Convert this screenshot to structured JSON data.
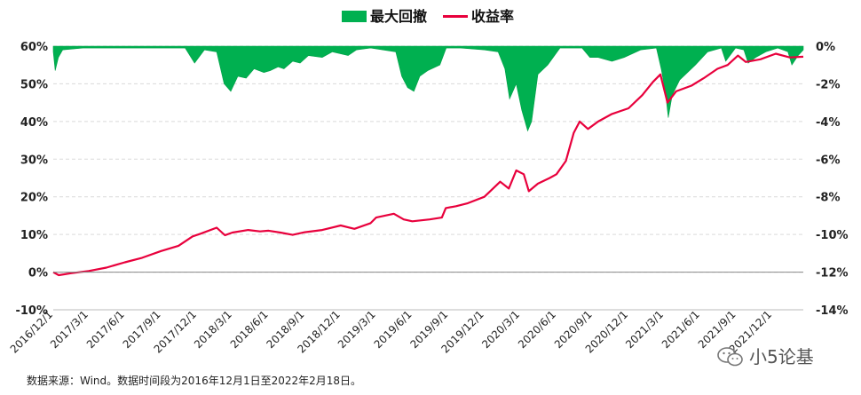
{
  "chart_data": {
    "type": "line+area",
    "legend": [
      {
        "name": "最大回撤",
        "color": "#00b050",
        "kind": "area"
      },
      {
        "name": "收益率",
        "color": "#e8003c",
        "kind": "line"
      }
    ],
    "legend_placement": "top-center",
    "y_left": {
      "ticks": [
        "60%",
        "50%",
        "40%",
        "30%",
        "20%",
        "10%",
        "0%",
        "-10%"
      ],
      "range": [
        -10,
        60
      ]
    },
    "y_right": {
      "ticks": [
        "0%",
        "-2%",
        "-4%",
        "-6%",
        "-8%",
        "-10%",
        "-12%",
        "-14%"
      ],
      "range": [
        -14,
        0
      ]
    },
    "x_ticks": [
      "2016/12/1",
      "2017/3/1",
      "2017/6/1",
      "2017/9/1",
      "2017/12/1",
      "2018/3/1",
      "2018/6/1",
      "2018/9/1",
      "2018/12/1",
      "2019/3/1",
      "2019/6/1",
      "2019/9/1",
      "2019/12/1",
      "2020/3/1",
      "2020/6/1",
      "2020/9/1",
      "2020/12/1",
      "2021/3/1",
      "2021/6/1",
      "2021/9/1",
      "2021/12/1"
    ],
    "x_range": [
      "2016-12-01",
      "2022-02-18"
    ],
    "grid": true,
    "return_series": {
      "name": "收益率",
      "points": [
        [
          "2016-12-01",
          0.0
        ],
        [
          "2016-12-15",
          -0.8
        ],
        [
          "2017-01-15",
          -0.3
        ],
        [
          "2017-03-01",
          0.3
        ],
        [
          "2017-04-15",
          1.2
        ],
        [
          "2017-06-01",
          2.6
        ],
        [
          "2017-07-15",
          3.8
        ],
        [
          "2017-09-01",
          5.6
        ],
        [
          "2017-10-15",
          7.0
        ],
        [
          "2017-11-20",
          9.5
        ],
        [
          "2017-12-10",
          10.2
        ],
        [
          "2018-01-20",
          11.8
        ],
        [
          "2018-02-10",
          9.8
        ],
        [
          "2018-03-01",
          10.5
        ],
        [
          "2018-04-10",
          11.2
        ],
        [
          "2018-05-10",
          10.8
        ],
        [
          "2018-06-01",
          11.0
        ],
        [
          "2018-07-01",
          10.5
        ],
        [
          "2018-08-01",
          9.9
        ],
        [
          "2018-09-01",
          10.6
        ],
        [
          "2018-10-15",
          11.2
        ],
        [
          "2018-12-01",
          12.4
        ],
        [
          "2019-01-05",
          11.5
        ],
        [
          "2019-02-15",
          13.0
        ],
        [
          "2019-03-01",
          14.5
        ],
        [
          "2019-04-15",
          15.5
        ],
        [
          "2019-05-10",
          14.0
        ],
        [
          "2019-06-01",
          13.5
        ],
        [
          "2019-07-15",
          14.0
        ],
        [
          "2019-08-15",
          14.5
        ],
        [
          "2019-08-25",
          17.0
        ],
        [
          "2019-09-20",
          17.5
        ],
        [
          "2019-10-20",
          18.3
        ],
        [
          "2019-12-01",
          20.0
        ],
        [
          "2020-01-10",
          24.0
        ],
        [
          "2020-02-01",
          22.2
        ],
        [
          "2020-02-20",
          27.0
        ],
        [
          "2020-03-10",
          26.0
        ],
        [
          "2020-03-23",
          21.5
        ],
        [
          "2020-04-15",
          23.5
        ],
        [
          "2020-05-15",
          25.0
        ],
        [
          "2020-06-01",
          26.0
        ],
        [
          "2020-06-25",
          29.5
        ],
        [
          "2020-07-15",
          37.0
        ],
        [
          "2020-07-30",
          40.0
        ],
        [
          "2020-08-20",
          38.0
        ],
        [
          "2020-09-15",
          40.0
        ],
        [
          "2020-10-20",
          42.0
        ],
        [
          "2020-12-01",
          43.5
        ],
        [
          "2021-01-05",
          47.0
        ],
        [
          "2021-02-01",
          50.5
        ],
        [
          "2021-02-20",
          52.5
        ],
        [
          "2021-03-10",
          45.0
        ],
        [
          "2021-04-01",
          48.0
        ],
        [
          "2021-05-10",
          49.5
        ],
        [
          "2021-06-10",
          51.5
        ],
        [
          "2021-07-15",
          54.0
        ],
        [
          "2021-08-10",
          55.0
        ],
        [
          "2021-09-05",
          57.5
        ],
        [
          "2021-09-25",
          55.8
        ],
        [
          "2021-11-01",
          56.5
        ],
        [
          "2021-12-10",
          58.0
        ],
        [
          "2022-01-15",
          57.0
        ],
        [
          "2022-02-18",
          57.2
        ]
      ]
    },
    "drawdown_series": {
      "name": "最大回撤",
      "points": [
        [
          "2016-12-01",
          -0.3
        ],
        [
          "2016-12-06",
          -1.3
        ],
        [
          "2016-12-14",
          -0.6
        ],
        [
          "2016-12-25",
          -0.2
        ],
        [
          "2017-02-15",
          -0.1
        ],
        [
          "2017-05-01",
          -0.1
        ],
        [
          "2017-08-01",
          -0.1
        ],
        [
          "2017-11-01",
          -0.1
        ],
        [
          "2017-11-25",
          -0.9
        ],
        [
          "2017-12-20",
          -0.2
        ],
        [
          "2018-01-20",
          -0.3
        ],
        [
          "2018-02-08",
          -2.0
        ],
        [
          "2018-02-25",
          -2.4
        ],
        [
          "2018-03-15",
          -1.6
        ],
        [
          "2018-04-05",
          -1.7
        ],
        [
          "2018-04-25",
          -1.2
        ],
        [
          "2018-05-20",
          -1.4
        ],
        [
          "2018-06-05",
          -1.3
        ],
        [
          "2018-06-25",
          -1.1
        ],
        [
          "2018-07-10",
          -1.2
        ],
        [
          "2018-08-01",
          -0.8
        ],
        [
          "2018-08-20",
          -0.9
        ],
        [
          "2018-09-10",
          -0.5
        ],
        [
          "2018-10-15",
          -0.6
        ],
        [
          "2018-11-10",
          -0.3
        ],
        [
          "2018-12-20",
          -0.5
        ],
        [
          "2019-01-10",
          -0.2
        ],
        [
          "2019-02-15",
          -0.1
        ],
        [
          "2019-04-20",
          -0.3
        ],
        [
          "2019-05-05",
          -1.6
        ],
        [
          "2019-05-20",
          -2.2
        ],
        [
          "2019-06-05",
          -2.4
        ],
        [
          "2019-06-20",
          -1.6
        ],
        [
          "2019-07-10",
          -1.3
        ],
        [
          "2019-08-10",
          -1.0
        ],
        [
          "2019-08-26",
          -0.1
        ],
        [
          "2019-10-01",
          -0.1
        ],
        [
          "2019-12-01",
          -0.2
        ],
        [
          "2020-01-05",
          -0.3
        ],
        [
          "2020-01-22",
          -1.2
        ],
        [
          "2020-02-03",
          -2.8
        ],
        [
          "2020-02-20",
          -2.0
        ],
        [
          "2020-03-05",
          -3.4
        ],
        [
          "2020-03-20",
          -4.5
        ],
        [
          "2020-03-30",
          -4.0
        ],
        [
          "2020-04-15",
          -1.5
        ],
        [
          "2020-05-10",
          -1.0
        ],
        [
          "2020-06-10",
          -0.1
        ],
        [
          "2020-08-05",
          -0.1
        ],
        [
          "2020-08-25",
          -0.6
        ],
        [
          "2020-09-15",
          -0.6
        ],
        [
          "2020-10-20",
          -0.8
        ],
        [
          "2020-11-20",
          -0.6
        ],
        [
          "2021-01-01",
          -0.2
        ],
        [
          "2021-02-10",
          -0.1
        ],
        [
          "2021-02-22",
          -1.2
        ],
        [
          "2021-03-05",
          -2.5
        ],
        [
          "2021-03-12",
          -3.8
        ],
        [
          "2021-03-22",
          -2.6
        ],
        [
          "2021-04-10",
          -1.8
        ],
        [
          "2021-05-20",
          -1.0
        ],
        [
          "2021-06-20",
          -0.3
        ],
        [
          "2021-07-25",
          -0.1
        ],
        [
          "2021-08-05",
          -0.8
        ],
        [
          "2021-08-30",
          -0.1
        ],
        [
          "2021-09-20",
          -0.2
        ],
        [
          "2021-10-01",
          -0.9
        ],
        [
          "2021-10-20",
          -0.6
        ],
        [
          "2021-11-15",
          -0.3
        ],
        [
          "2021-12-15",
          -0.1
        ],
        [
          "2022-01-10",
          -0.3
        ],
        [
          "2022-01-20",
          -1.0
        ],
        [
          "2022-02-05",
          -0.5
        ],
        [
          "2022-02-18",
          -0.2
        ]
      ]
    }
  },
  "source_note": "数据来源：Wind。数据时间段为2016年12月1日至2022年2月18日。",
  "watermark": "小5论基"
}
